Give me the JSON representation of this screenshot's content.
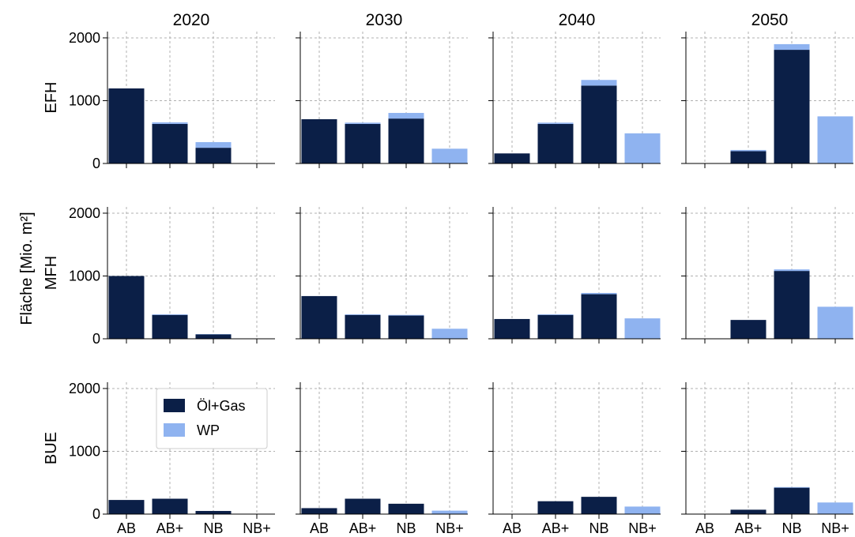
{
  "figure": {
    "ylabel": "Fläche [Mio. m²]",
    "legend": {
      "position": "upper-right of bottom-left panel",
      "entries": [
        {
          "label": "Öl+Gas",
          "color": "#0b1f47"
        },
        {
          "label": "WP",
          "color": "#8fb3f0"
        }
      ]
    }
  },
  "chart_data": {
    "type": "bar",
    "layout": "grid 3 rows x 4 columns, stacked bars",
    "columns": [
      "2020",
      "2030",
      "2040",
      "2050"
    ],
    "rows": [
      "EFH",
      "MFH",
      "BUE"
    ],
    "categories": [
      "AB",
      "AB+",
      "NB",
      "NB+"
    ],
    "series_names": [
      "Öl+Gas",
      "WP"
    ],
    "series_colors": [
      "#0b1f47",
      "#8fb3f0"
    ],
    "ylim": [
      0,
      2100
    ],
    "yticks": [
      0,
      1000,
      2000
    ],
    "grid": true,
    "panels": [
      {
        "row": "EFH",
        "col": "2020",
        "series": [
          {
            "name": "Öl+Gas",
            "values": [
              1195,
              630,
              250,
              0
            ]
          },
          {
            "name": "WP",
            "values": [
              0,
              25,
              90,
              0
            ]
          }
        ]
      },
      {
        "row": "EFH",
        "col": "2030",
        "series": [
          {
            "name": "Öl+Gas",
            "values": [
              705,
              630,
              715,
              0
            ]
          },
          {
            "name": "WP",
            "values": [
              0,
              20,
              90,
              235
            ]
          }
        ]
      },
      {
        "row": "EFH",
        "col": "2040",
        "series": [
          {
            "name": "Öl+Gas",
            "values": [
              160,
              630,
              1240,
              0
            ]
          },
          {
            "name": "WP",
            "values": [
              0,
              20,
              90,
              480
            ]
          }
        ]
      },
      {
        "row": "EFH",
        "col": "2050",
        "series": [
          {
            "name": "Öl+Gas",
            "values": [
              0,
              195,
              1810,
              0
            ]
          },
          {
            "name": "WP",
            "values": [
              0,
              20,
              90,
              750
            ]
          }
        ]
      },
      {
        "row": "MFH",
        "col": "2020",
        "series": [
          {
            "name": "Öl+Gas",
            "values": [
              1000,
              380,
              70,
              0
            ]
          },
          {
            "name": "WP",
            "values": [
              0,
              10,
              5,
              0
            ]
          }
        ]
      },
      {
        "row": "MFH",
        "col": "2030",
        "series": [
          {
            "name": "Öl+Gas",
            "values": [
              680,
              380,
              370,
              0
            ]
          },
          {
            "name": "WP",
            "values": [
              0,
              10,
              10,
              160
            ]
          }
        ]
      },
      {
        "row": "MFH",
        "col": "2040",
        "series": [
          {
            "name": "Öl+Gas",
            "values": [
              315,
              380,
              710,
              0
            ]
          },
          {
            "name": "WP",
            "values": [
              0,
              10,
              20,
              325
            ]
          }
        ]
      },
      {
        "row": "MFH",
        "col": "2050",
        "series": [
          {
            "name": "Öl+Gas",
            "values": [
              0,
              300,
              1080,
              0
            ]
          },
          {
            "name": "WP",
            "values": [
              0,
              0,
              25,
              510
            ]
          }
        ]
      },
      {
        "row": "BUE",
        "col": "2020",
        "series": [
          {
            "name": "Öl+Gas",
            "values": [
              225,
              245,
              50,
              0
            ]
          },
          {
            "name": "WP",
            "values": [
              0,
              0,
              0,
              0
            ]
          }
        ]
      },
      {
        "row": "BUE",
        "col": "2030",
        "series": [
          {
            "name": "Öl+Gas",
            "values": [
              95,
              245,
              165,
              0
            ]
          },
          {
            "name": "WP",
            "values": [
              0,
              0,
              0,
              55
            ]
          }
        ]
      },
      {
        "row": "BUE",
        "col": "2040",
        "series": [
          {
            "name": "Öl+Gas",
            "values": [
              0,
              205,
              275,
              0
            ]
          },
          {
            "name": "WP",
            "values": [
              0,
              0,
              0,
              120
            ]
          }
        ]
      },
      {
        "row": "BUE",
        "col": "2050",
        "series": [
          {
            "name": "Öl+Gas",
            "values": [
              0,
              70,
              420,
              0
            ]
          },
          {
            "name": "WP",
            "values": [
              0,
              0,
              10,
              185
            ]
          }
        ]
      }
    ]
  }
}
